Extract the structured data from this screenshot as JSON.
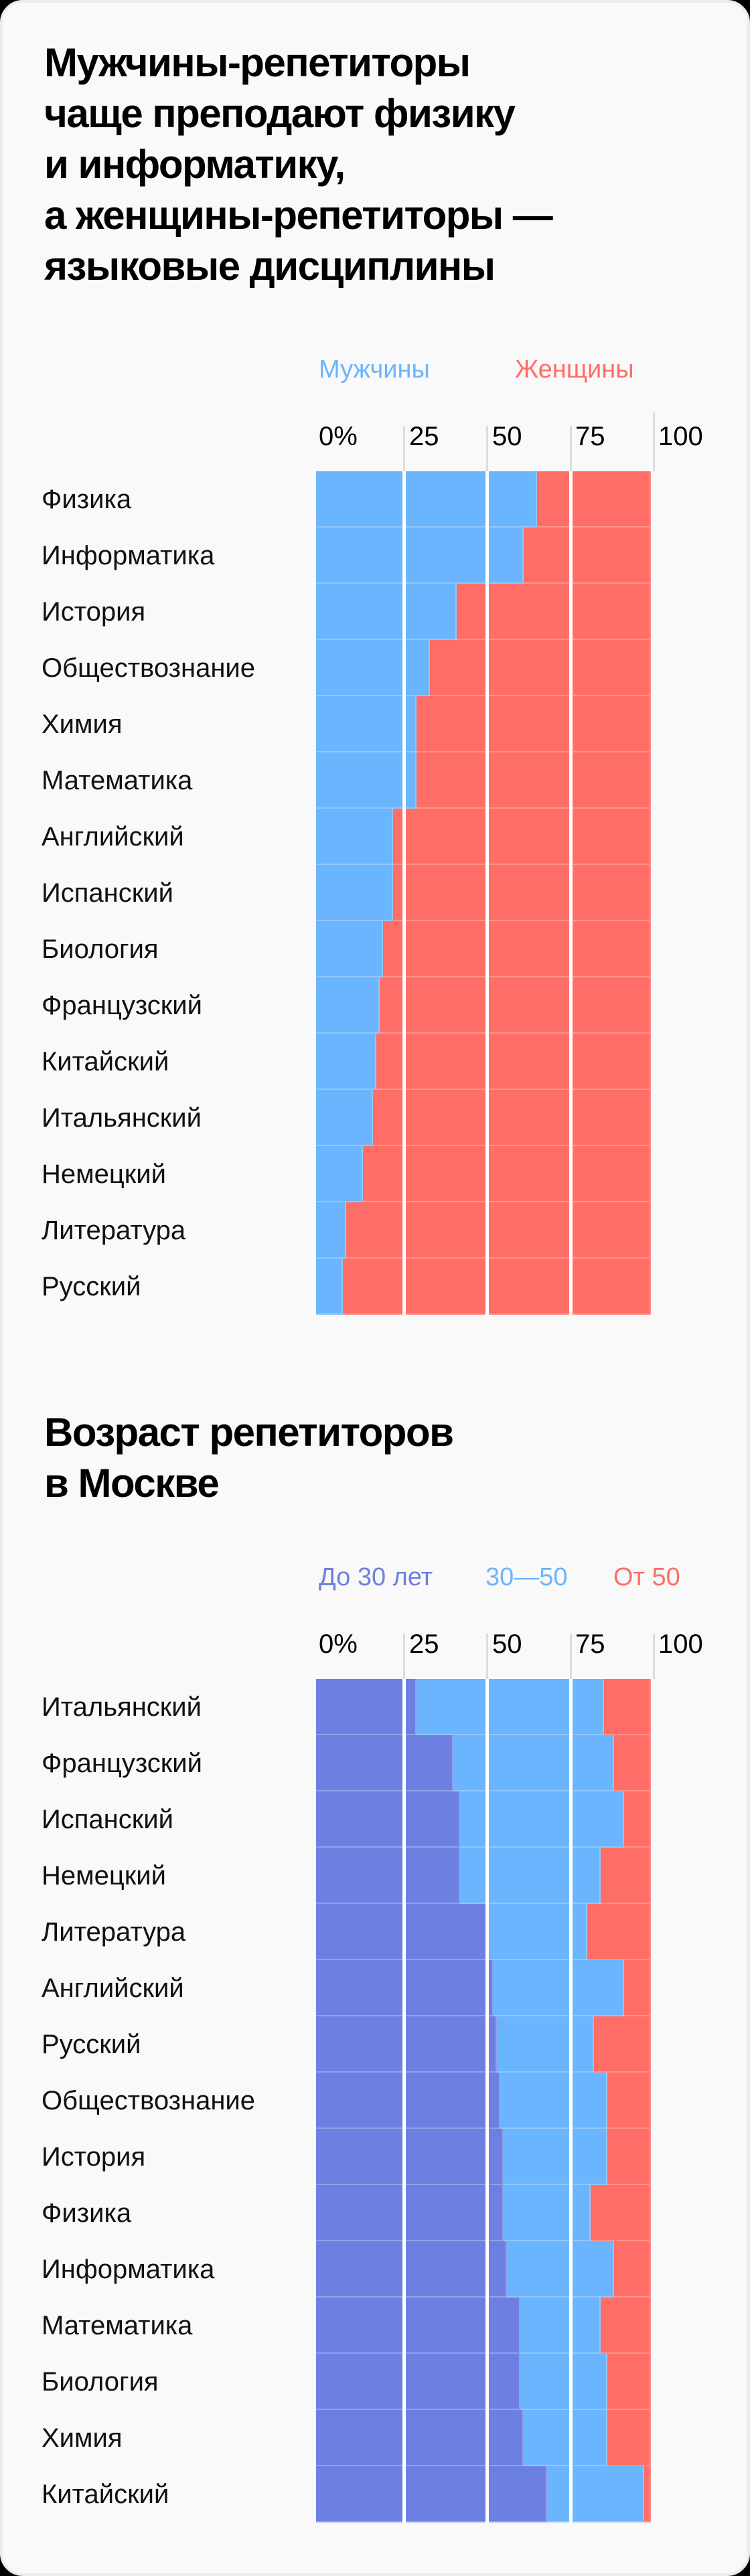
{
  "charts": [
    {
      "title_lines": [
        "Мужчины-репетиторы",
        "чаще преподают физику",
        "и информатику,",
        "а женщины-репетиторы —",
        "языковые дисциплины"
      ],
      "legend": [
        {
          "label": "Мужчины",
          "color": "#6bb5fe"
        },
        {
          "label": "Женщины",
          "color": "#ff6e66"
        }
      ],
      "axis_ticks": [
        "0%",
        "25",
        "50",
        "75",
        "100"
      ]
    },
    {
      "title_lines": [
        "Возраст репетиторов",
        "в Москве"
      ],
      "legend": [
        {
          "label": "До 30 лет",
          "color": "#6d80e2"
        },
        {
          "label": "30—50",
          "color": "#6bb5fe"
        },
        {
          "label": "От 50",
          "color": "#ff6e66"
        }
      ],
      "axis_ticks": [
        "0%",
        "25",
        "50",
        "75",
        "100"
      ]
    }
  ],
  "chart_data": [
    {
      "type": "bar",
      "orientation": "horizontal",
      "stacked": "100%",
      "title": "Мужчины-репетиторы чаще преподают физику и информатику, а женщины-репетиторы — языковые дисциплины",
      "categories": [
        "Физика",
        "Информатика",
        "История",
        "Обществознание",
        "Химия",
        "Математика",
        "Английский",
        "Испанский",
        "Биология",
        "Французский",
        "Китайский",
        "Итальянский",
        "Немецкий",
        "Литература",
        "Русский"
      ],
      "series": [
        {
          "name": "Мужчины",
          "color": "#6bb5fe",
          "values": [
            66,
            62,
            42,
            34,
            30,
            30,
            23,
            23,
            20,
            19,
            18,
            17,
            14,
            9,
            8
          ]
        },
        {
          "name": "Женщины",
          "color": "#ff6e66",
          "values": [
            34,
            38,
            58,
            66,
            70,
            70,
            77,
            77,
            80,
            81,
            82,
            83,
            86,
            91,
            92
          ]
        }
      ],
      "xlabel": "",
      "ylabel": "",
      "xlim": [
        0,
        100
      ],
      "xticks": [
        "0%",
        "25",
        "50",
        "75",
        "100"
      ],
      "grid": true,
      "legend_position": "top"
    },
    {
      "type": "bar",
      "orientation": "horizontal",
      "stacked": "100%",
      "title": "Возраст репетиторов в Москве",
      "categories": [
        "Итальянский",
        "Французский",
        "Испанский",
        "Немецкий",
        "Литература",
        "Английский",
        "Русский",
        "Обществознание",
        "История",
        "Физика",
        "Информатика",
        "Математика",
        "Биология",
        "Химия",
        "Китайский"
      ],
      "series": [
        {
          "name": "До 30 лет",
          "color": "#6d80e2",
          "values": [
            30,
            41,
            43,
            43,
            51,
            53,
            54,
            55,
            56,
            56,
            57,
            61,
            61,
            62,
            69
          ]
        },
        {
          "name": "30—50",
          "color": "#6bb5fe",
          "values": [
            56,
            48,
            49,
            42,
            30,
            39,
            29,
            32,
            31,
            26,
            32,
            24,
            26,
            25,
            29
          ]
        },
        {
          "name": "От 50",
          "color": "#ff6e66",
          "values": [
            14,
            11,
            8,
            15,
            19,
            8,
            17,
            13,
            13,
            18,
            11,
            15,
            13,
            13,
            2
          ]
        }
      ],
      "xlabel": "",
      "ylabel": "",
      "xlim": [
        0,
        100
      ],
      "xticks": [
        "0%",
        "25",
        "50",
        "75",
        "100"
      ],
      "grid": true,
      "legend_position": "top"
    }
  ]
}
